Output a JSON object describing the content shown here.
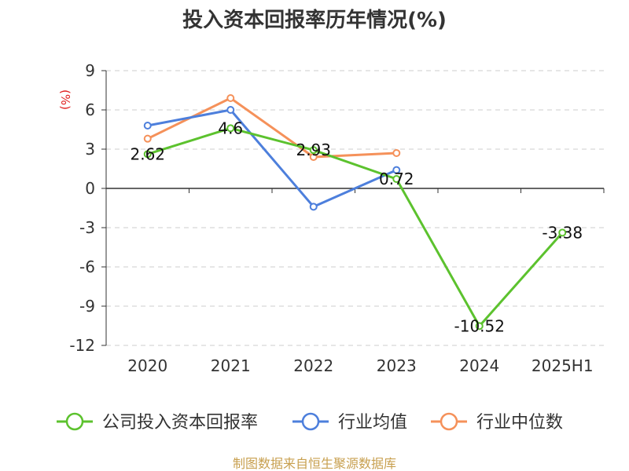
{
  "chart_data": {
    "type": "line",
    "title": "投入资本回报率历年情况(%)",
    "ylabel": "(%)",
    "xlabel": "",
    "categories": [
      "2020",
      "2021",
      "2022",
      "2023",
      "2024",
      "2025H1"
    ],
    "ylim": [
      -12,
      9
    ],
    "yticks": [
      9,
      6,
      3,
      0,
      -3,
      -6,
      -9,
      -12
    ],
    "grid": true,
    "legend_position": "bottom",
    "series": [
      {
        "name": "公司投入资本回报率",
        "color": "#5cc22e",
        "values": [
          2.62,
          4.6,
          2.93,
          0.72,
          -10.52,
          -3.38
        ],
        "labels": [
          "2.62",
          "4.6",
          "2.93",
          "0.72",
          "-10.52",
          "-3.38"
        ]
      },
      {
        "name": "行业均值",
        "color": "#4d7fdc",
        "values": [
          4.8,
          6.0,
          -1.4,
          1.4,
          null,
          null
        ]
      },
      {
        "name": "行业中位数",
        "color": "#f5915a",
        "values": [
          3.8,
          6.9,
          2.4,
          2.7,
          null,
          null
        ]
      }
    ]
  },
  "source": "制图数据来自恒生聚源数据库"
}
